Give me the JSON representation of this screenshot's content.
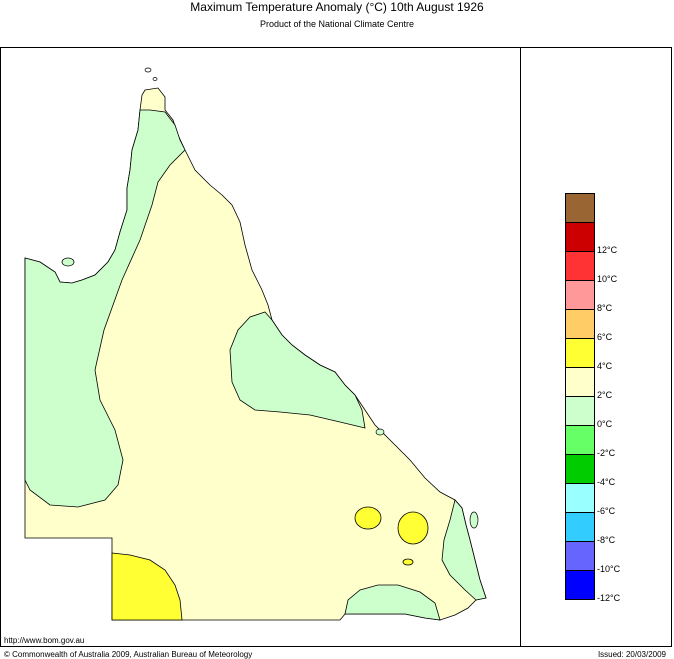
{
  "header": {
    "title": "Maximum Temperature Anomaly (°C)  10th August 1926",
    "subtitle": "Product of the National Climate Centre"
  },
  "legend": {
    "items": [
      {
        "color": "#996633",
        "label": ""
      },
      {
        "color": "#cc0000",
        "label": "12°C"
      },
      {
        "color": "#ff3333",
        "label": "10°C"
      },
      {
        "color": "#ff9999",
        "label": "8°C"
      },
      {
        "color": "#ffcc66",
        "label": "6°C"
      },
      {
        "color": "#ffff33",
        "label": "4°C"
      },
      {
        "color": "#ffffcc",
        "label": "2°C"
      },
      {
        "color": "#ccffcc",
        "label": "0°C"
      },
      {
        "color": "#66ff66",
        "label": "-2°C"
      },
      {
        "color": "#00cc00",
        "label": "-4°C"
      },
      {
        "color": "#99ffff",
        "label": "-6°C"
      },
      {
        "color": "#33ccff",
        "label": "-8°C"
      },
      {
        "color": "#6666ff",
        "label": "-10°C"
      },
      {
        "color": "#0000ff",
        "label": "-12°C"
      }
    ]
  },
  "map_colors": {
    "base": "#ffffcc",
    "cool": "#ccffcc",
    "warm": "#ffff33"
  },
  "footer": {
    "url": "http://www.bom.gov.au",
    "copyright": "© Commonwealth of Australia 2009, Australian Bureau of Meteorology",
    "issued": "Issued: 20/03/2009"
  }
}
